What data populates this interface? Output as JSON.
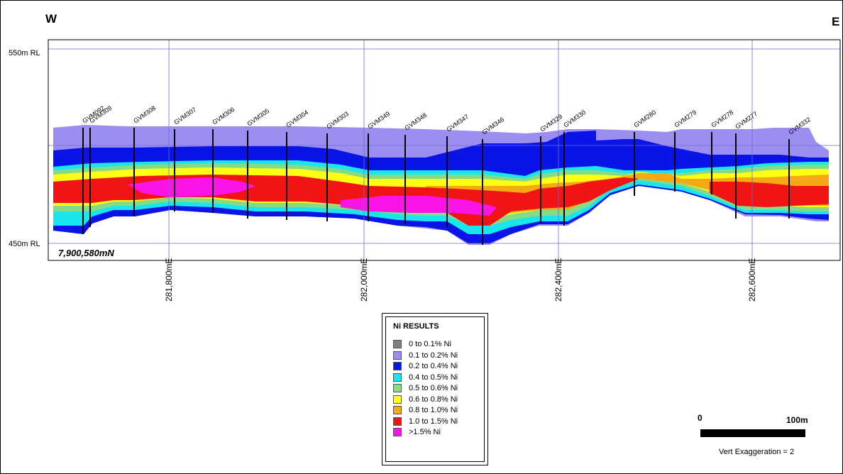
{
  "section": {
    "west_label": "W",
    "east_label": "E",
    "northing_label": "7,900,580mN",
    "rl_labels": [
      "550m RL",
      "450m RL"
    ],
    "easting_labels": [
      "281,800mE",
      "282,000mE",
      "282,400mE",
      "282,600mE"
    ],
    "drillholes": [
      "GVM092",
      "GVM309",
      "GVM308",
      "GVM307",
      "GVM306",
      "GVM305",
      "GVM304",
      "GVM303",
      "GVM349",
      "GVM348",
      "GVM347",
      "GVM346",
      "GVM329",
      "GVM330",
      "GVM280",
      "GVM279",
      "GVM278",
      "GVM277",
      "GVM332"
    ]
  },
  "legend": {
    "title": "Ni RESULTS",
    "items": [
      {
        "label": "0 to 0.1% Ni",
        "color": "#808080"
      },
      {
        "label": "0.1 to 0.2% Ni",
        "color": "#9b8ef0"
      },
      {
        "label": "0.2 to 0.4% Ni",
        "color": "#0a14e6"
      },
      {
        "label": "0.4 to 0.5% Ni",
        "color": "#19e5ec"
      },
      {
        "label": "0.5 to 0.6% Ni",
        "color": "#86db86"
      },
      {
        "label": "0.6 to 0.8% Ni",
        "color": "#ffff14"
      },
      {
        "label": "0.8 to 1.0% Ni",
        "color": "#f5aa14"
      },
      {
        "label": "1.0 to 1.5% Ni",
        "color": "#f01414"
      },
      {
        "label": ">1.5% Ni",
        "color": "#fa14e6"
      }
    ]
  },
  "scale": {
    "zero_label": "0",
    "length_label": "100m",
    "vert_exaggeration": "Vert Exaggeration = 2"
  }
}
